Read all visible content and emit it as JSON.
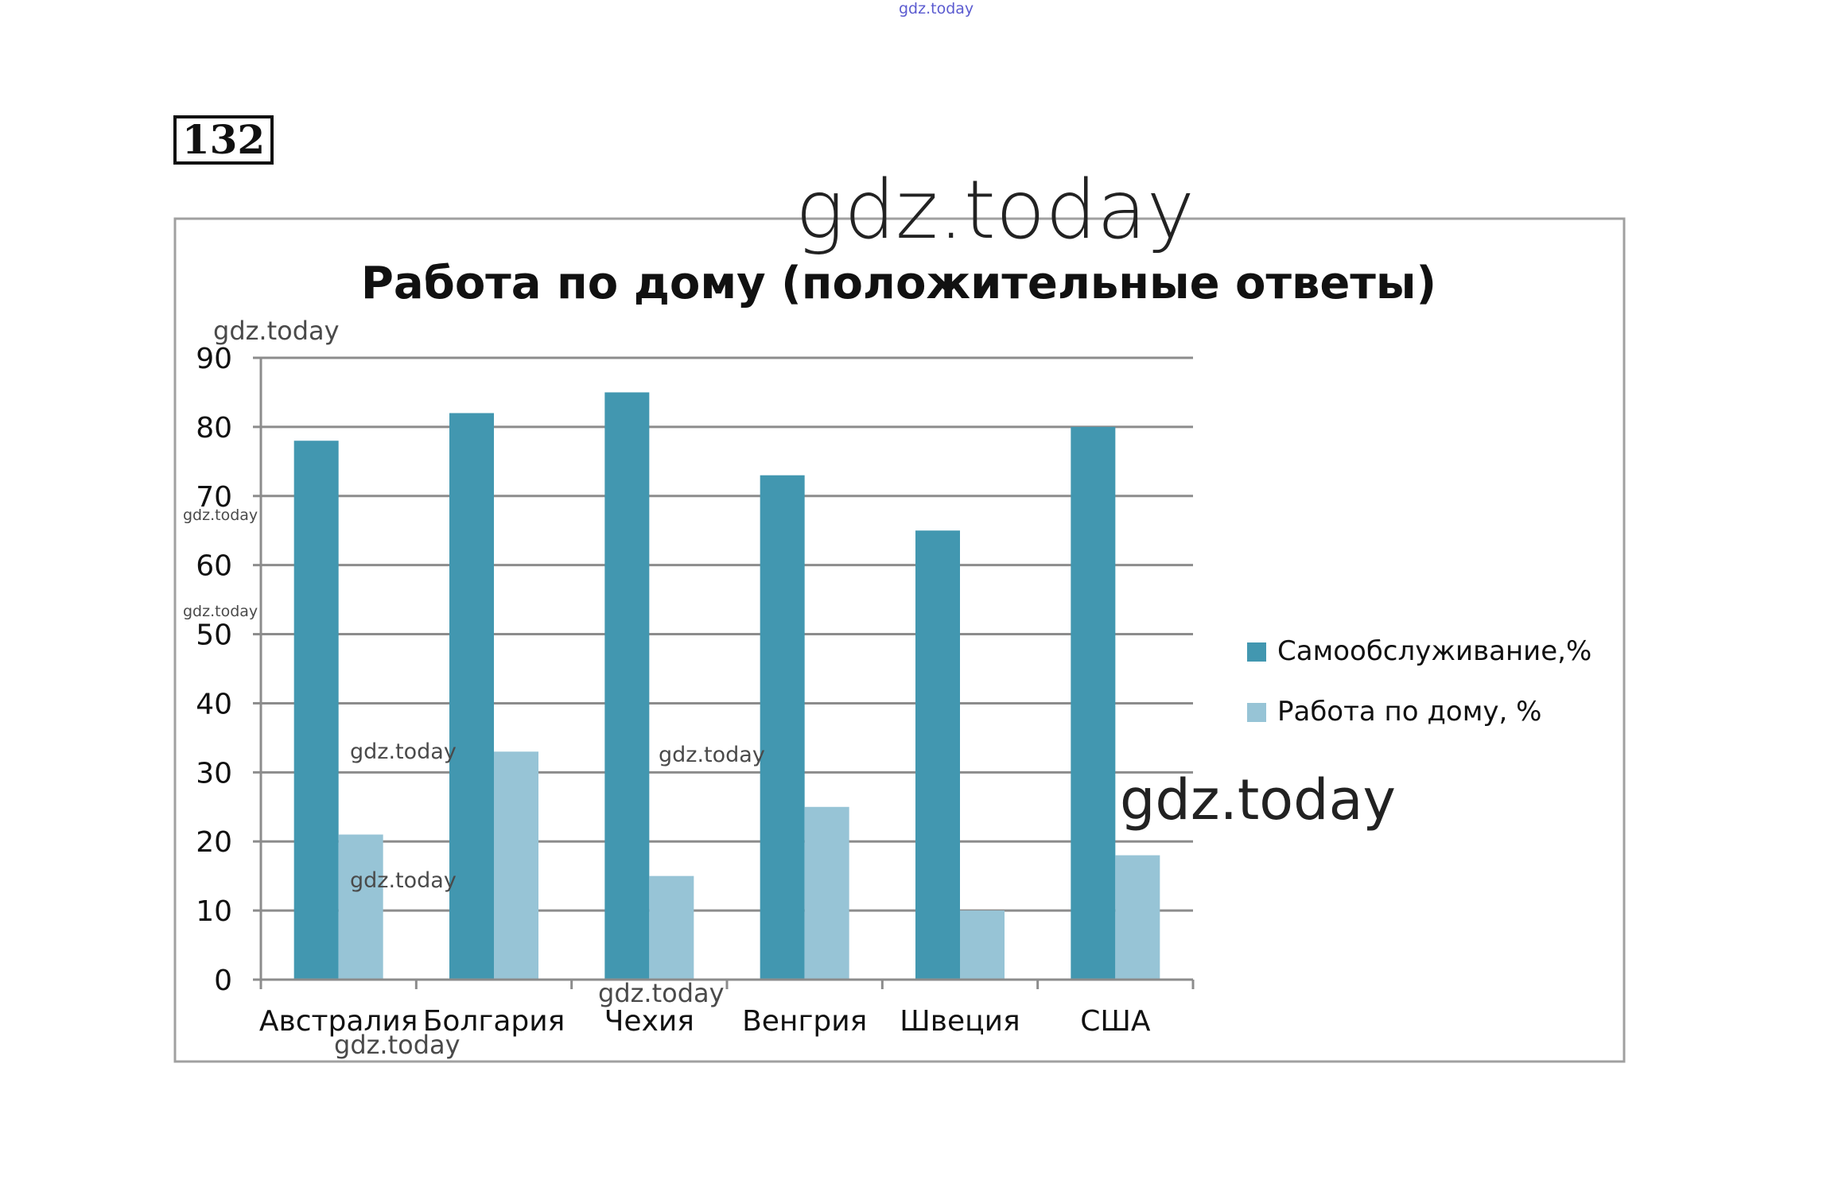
{
  "problem_number": "132",
  "watermarks": {
    "top": "gdz.today",
    "large": "gdz.today",
    "small": "gdz.today"
  },
  "colors": {
    "series1": "#4297b0",
    "series2": "#97c4d6",
    "grid": "#8c8c8c",
    "frame": "#a0a0a0",
    "text": "#111111"
  },
  "chart_data": {
    "type": "bar",
    "title": "Работа по дому (положительные ответы)",
    "categories": [
      "Австралия",
      "Болгария",
      "Чехия",
      "Венгрия",
      "Швеция",
      "США"
    ],
    "series": [
      {
        "name": "Самообслуживание,%",
        "values": [
          78,
          82,
          85,
          73,
          65,
          80
        ]
      },
      {
        "name": "Работа по дому, %",
        "values": [
          21,
          33,
          15,
          25,
          10,
          18
        ]
      }
    ],
    "ylim": [
      0,
      90
    ],
    "yticks": [
      0,
      10,
      20,
      30,
      40,
      50,
      60,
      70,
      80,
      90
    ],
    "grid": true,
    "legend": "right"
  }
}
